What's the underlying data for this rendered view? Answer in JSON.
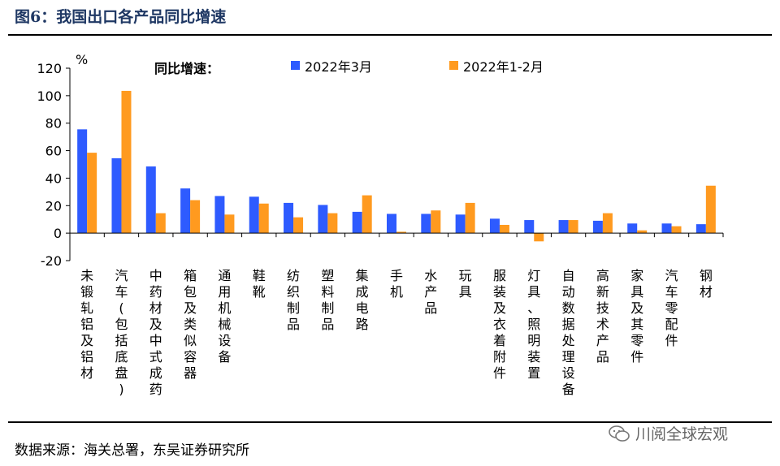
{
  "figure": {
    "title": "图6：我国出口各产品同比增速",
    "source": "数据来源：海关总署，东吴证券研究所",
    "watermark": "川阅全球宏观"
  },
  "chart_data": {
    "type": "bar",
    "title": "同比增速：",
    "ylabel": "%",
    "ylim": [
      -20,
      120
    ],
    "yticks": [
      120,
      100,
      80,
      60,
      40,
      20,
      0,
      -20
    ],
    "categories": [
      "未锻轧铝及铝材",
      "汽车(包括底盘)",
      "中药材及中式成药",
      "箱包及类似容器",
      "通用机械设备",
      "鞋靴",
      "纺织制品",
      "塑料制品",
      "集成电路",
      "手机",
      "水产品",
      "玩具",
      "服装及衣着附件",
      "灯具、照明装置",
      "自动数据处理设备",
      "高新技术产品",
      "家具及其零件",
      "汽车零配件",
      "钢材"
    ],
    "series": [
      {
        "name": "2022年3月",
        "color": "#2e5bff",
        "values": [
          75.5,
          54.5,
          48.5,
          32.5,
          27,
          26.5,
          22,
          20.5,
          15.5,
          14,
          14,
          13.5,
          10.5,
          9.5,
          9.5,
          9,
          7,
          7,
          6.5
        ]
      },
      {
        "name": "2022年1-2月",
        "color": "#ff9a1f",
        "values": [
          58.5,
          103.5,
          14.5,
          24,
          13.5,
          21.5,
          11.5,
          14.5,
          27.5,
          1,
          16.5,
          22,
          6,
          -6,
          9.5,
          14.5,
          2,
          5,
          34.5
        ]
      }
    ],
    "grid": false,
    "legend": "top"
  }
}
